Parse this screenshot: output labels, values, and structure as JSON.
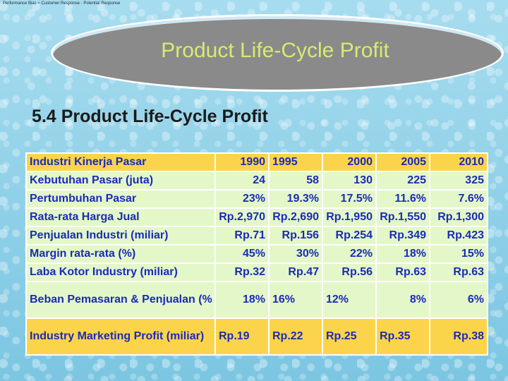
{
  "top_caption": "Performance Bias ≈ Customer Response - Potential Response",
  "title": "Product Life-Cycle Profit",
  "section_heading": "5.4 Product Life-Cycle Profit",
  "table": {
    "header": [
      "Industri Kinerja Pasar",
      "1990",
      "1995",
      "2000",
      "2005",
      "2010"
    ],
    "rows": [
      {
        "label": "Kebutuhan Pasar (juta)",
        "values": [
          "24",
          "58",
          "130",
          "225",
          "325"
        ]
      },
      {
        "label": "Pertumbuhan Pasar",
        "values": [
          "23%",
          "19.3%",
          "17.5%",
          "11.6%",
          "7.6%"
        ]
      },
      {
        "label": "Rata-rata Harga Jual",
        "values": [
          "Rp.2,970",
          "Rp.2,690",
          "Rp.1,950",
          "Rp.1,550",
          "Rp.1,300"
        ]
      },
      {
        "label": "Penjualan Industri (miliar)",
        "values": [
          "Rp.71",
          "Rp.156",
          "Rp.254",
          "Rp.349",
          "Rp.423"
        ]
      },
      {
        "label": "Margin rata-rata (%)",
        "values": [
          "45%",
          "30%",
          "22%",
          "18%",
          "15%"
        ]
      },
      {
        "label": "Laba Kotor Industry (miliar)",
        "values": [
          "Rp.32",
          "Rp.47",
          "Rp.56",
          "Rp.63",
          "Rp.63"
        ]
      },
      {
        "label": "Beban Pemasaran & Penjualan (% penjualan)",
        "values": [
          "18%",
          "16%",
          "12%",
          "8%",
          "6%"
        ]
      }
    ],
    "last_row": {
      "label": "Industry Marketing Profit (miliar)",
      "values": [
        "Rp.19",
        "Rp.22",
        "Rp.25",
        "Rp.35",
        "Rp.38"
      ]
    }
  }
}
